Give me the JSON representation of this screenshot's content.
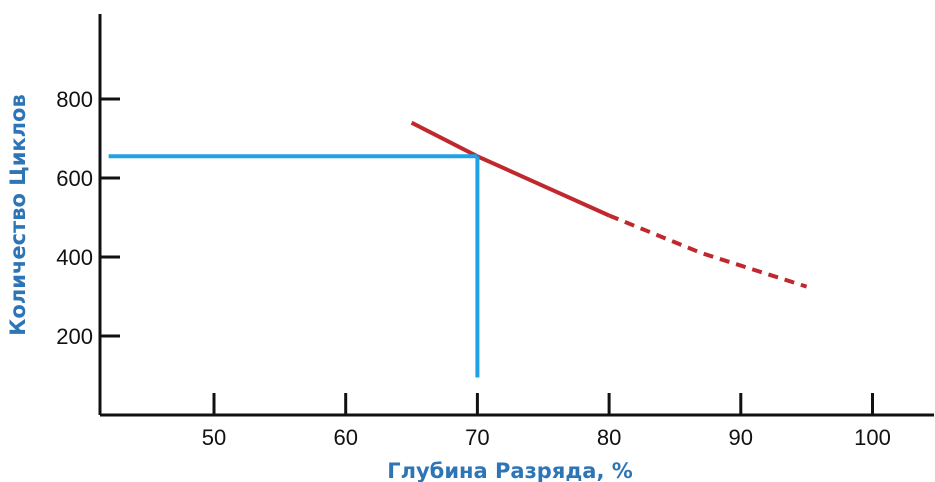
{
  "chart_data": {
    "type": "line",
    "xlabel": "Глубина Разряда, %",
    "ylabel": "Количество Циклов",
    "xlim": [
      40,
      100
    ],
    "ylim": [
      0,
      1000
    ],
    "x_ticks": [
      50,
      60,
      70,
      80,
      90,
      100
    ],
    "y_ticks": [
      200,
      400,
      600,
      800
    ],
    "grid": false,
    "colors": {
      "curve": "#c0282d",
      "guide": "#1fa3e6",
      "axis": "#111111",
      "axis_title": "#2e75b6"
    },
    "series": [
      {
        "style": "solid",
        "color": "#c0282d",
        "points": [
          [
            65,
            740
          ],
          [
            70,
            655
          ],
          [
            75,
            580
          ],
          [
            80,
            505
          ]
        ]
      },
      {
        "style": "dashed",
        "color": "#c0282d",
        "points": [
          [
            80,
            505
          ],
          [
            87,
            410
          ],
          [
            95,
            325
          ]
        ]
      }
    ],
    "annotations": [
      {
        "type": "guide-horizontal",
        "color": "#1fa3e6",
        "x_from": 42,
        "x_to": 70,
        "y": 655
      },
      {
        "type": "guide-vertical",
        "color": "#1fa3e6",
        "x": 70,
        "y_from": 655,
        "y_to": 95
      }
    ]
  }
}
